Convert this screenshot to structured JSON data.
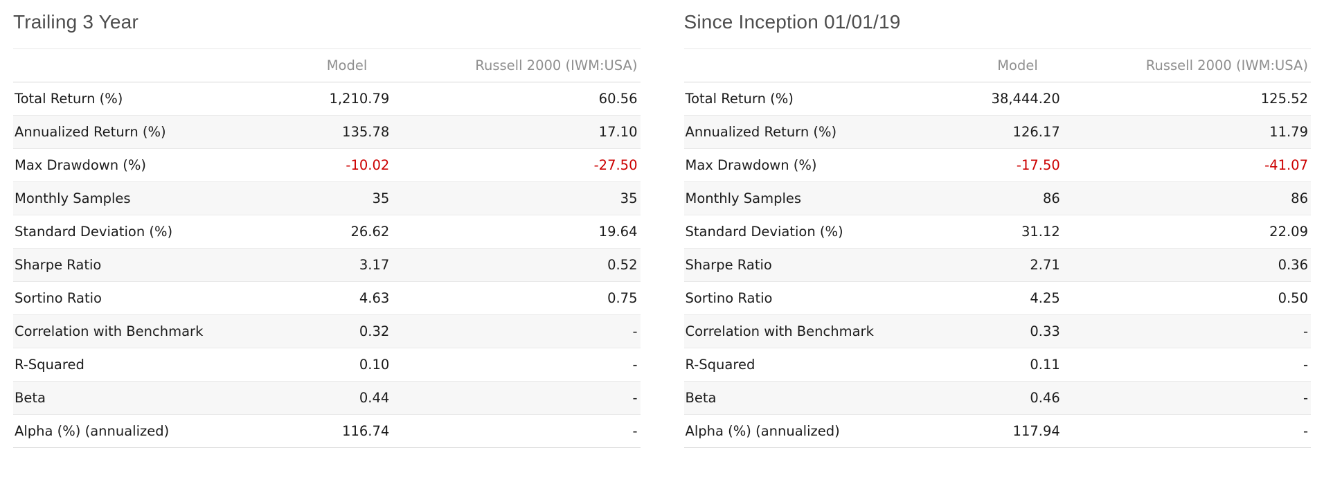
{
  "colors": {
    "page_background": "#ffffff",
    "title_text": "#4d4d4d",
    "header_text": "#8f8f8f",
    "body_text": "#1a1a1a",
    "negative_value": "#cc0000",
    "row_alt_background": "#f7f7f7",
    "border_light": "#e9e9e9",
    "border_dark": "#d6d6d6"
  },
  "tables": [
    {
      "title": "Trailing 3 Year",
      "columns": [
        "",
        "Model",
        "Russell 2000 (IWM:USA)"
      ],
      "rows": [
        {
          "label": "Total Return (%)",
          "model": "1,210.79",
          "benchmark": "60.56"
        },
        {
          "label": "Annualized Return (%)",
          "model": "135.78",
          "benchmark": "17.10"
        },
        {
          "label": "Max Drawdown (%)",
          "model": "-10.02",
          "benchmark": "-27.50"
        },
        {
          "label": "Monthly Samples",
          "model": "35",
          "benchmark": "35"
        },
        {
          "label": "Standard Deviation (%)",
          "model": "26.62",
          "benchmark": "19.64"
        },
        {
          "label": "Sharpe Ratio",
          "model": "3.17",
          "benchmark": "0.52"
        },
        {
          "label": "Sortino Ratio",
          "model": "4.63",
          "benchmark": "0.75"
        },
        {
          "label": "Correlation with Benchmark",
          "model": "0.32",
          "benchmark": "-"
        },
        {
          "label": "R-Squared",
          "model": "0.10",
          "benchmark": "-"
        },
        {
          "label": "Beta",
          "model": "0.44",
          "benchmark": "-"
        },
        {
          "label": "Alpha (%) (annualized)",
          "model": "116.74",
          "benchmark": "-"
        }
      ]
    },
    {
      "title": "Since Inception 01/01/19",
      "columns": [
        "",
        "Model",
        "Russell 2000 (IWM:USA)"
      ],
      "rows": [
        {
          "label": "Total Return (%)",
          "model": "38,444.20",
          "benchmark": "125.52"
        },
        {
          "label": "Annualized Return (%)",
          "model": "126.17",
          "benchmark": "11.79"
        },
        {
          "label": "Max Drawdown (%)",
          "model": "-17.50",
          "benchmark": "-41.07"
        },
        {
          "label": "Monthly Samples",
          "model": "86",
          "benchmark": "86"
        },
        {
          "label": "Standard Deviation (%)",
          "model": "31.12",
          "benchmark": "22.09"
        },
        {
          "label": "Sharpe Ratio",
          "model": "2.71",
          "benchmark": "0.36"
        },
        {
          "label": "Sortino Ratio",
          "model": "4.25",
          "benchmark": "0.50"
        },
        {
          "label": "Correlation with Benchmark",
          "model": "0.33",
          "benchmark": "-"
        },
        {
          "label": "R-Squared",
          "model": "0.11",
          "benchmark": "-"
        },
        {
          "label": "Beta",
          "model": "0.46",
          "benchmark": "-"
        },
        {
          "label": "Alpha (%) (annualized)",
          "model": "117.94",
          "benchmark": "-"
        }
      ]
    }
  ]
}
